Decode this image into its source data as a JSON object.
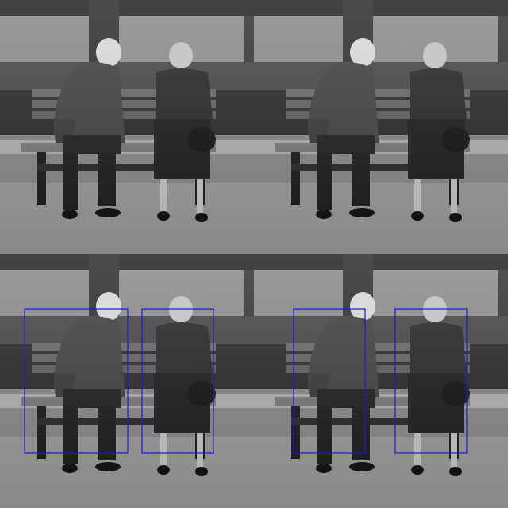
{
  "figure": {
    "description_visible_text": "",
    "panels": [
      {
        "id": "top-left",
        "boxes": []
      },
      {
        "id": "top-right",
        "boxes": []
      },
      {
        "id": "bottom-left",
        "boxes": [
          "man",
          "woman"
        ]
      },
      {
        "id": "bottom-right",
        "boxes": [
          "man",
          "woman"
        ]
      }
    ],
    "box_color": "#1a1ad6"
  }
}
